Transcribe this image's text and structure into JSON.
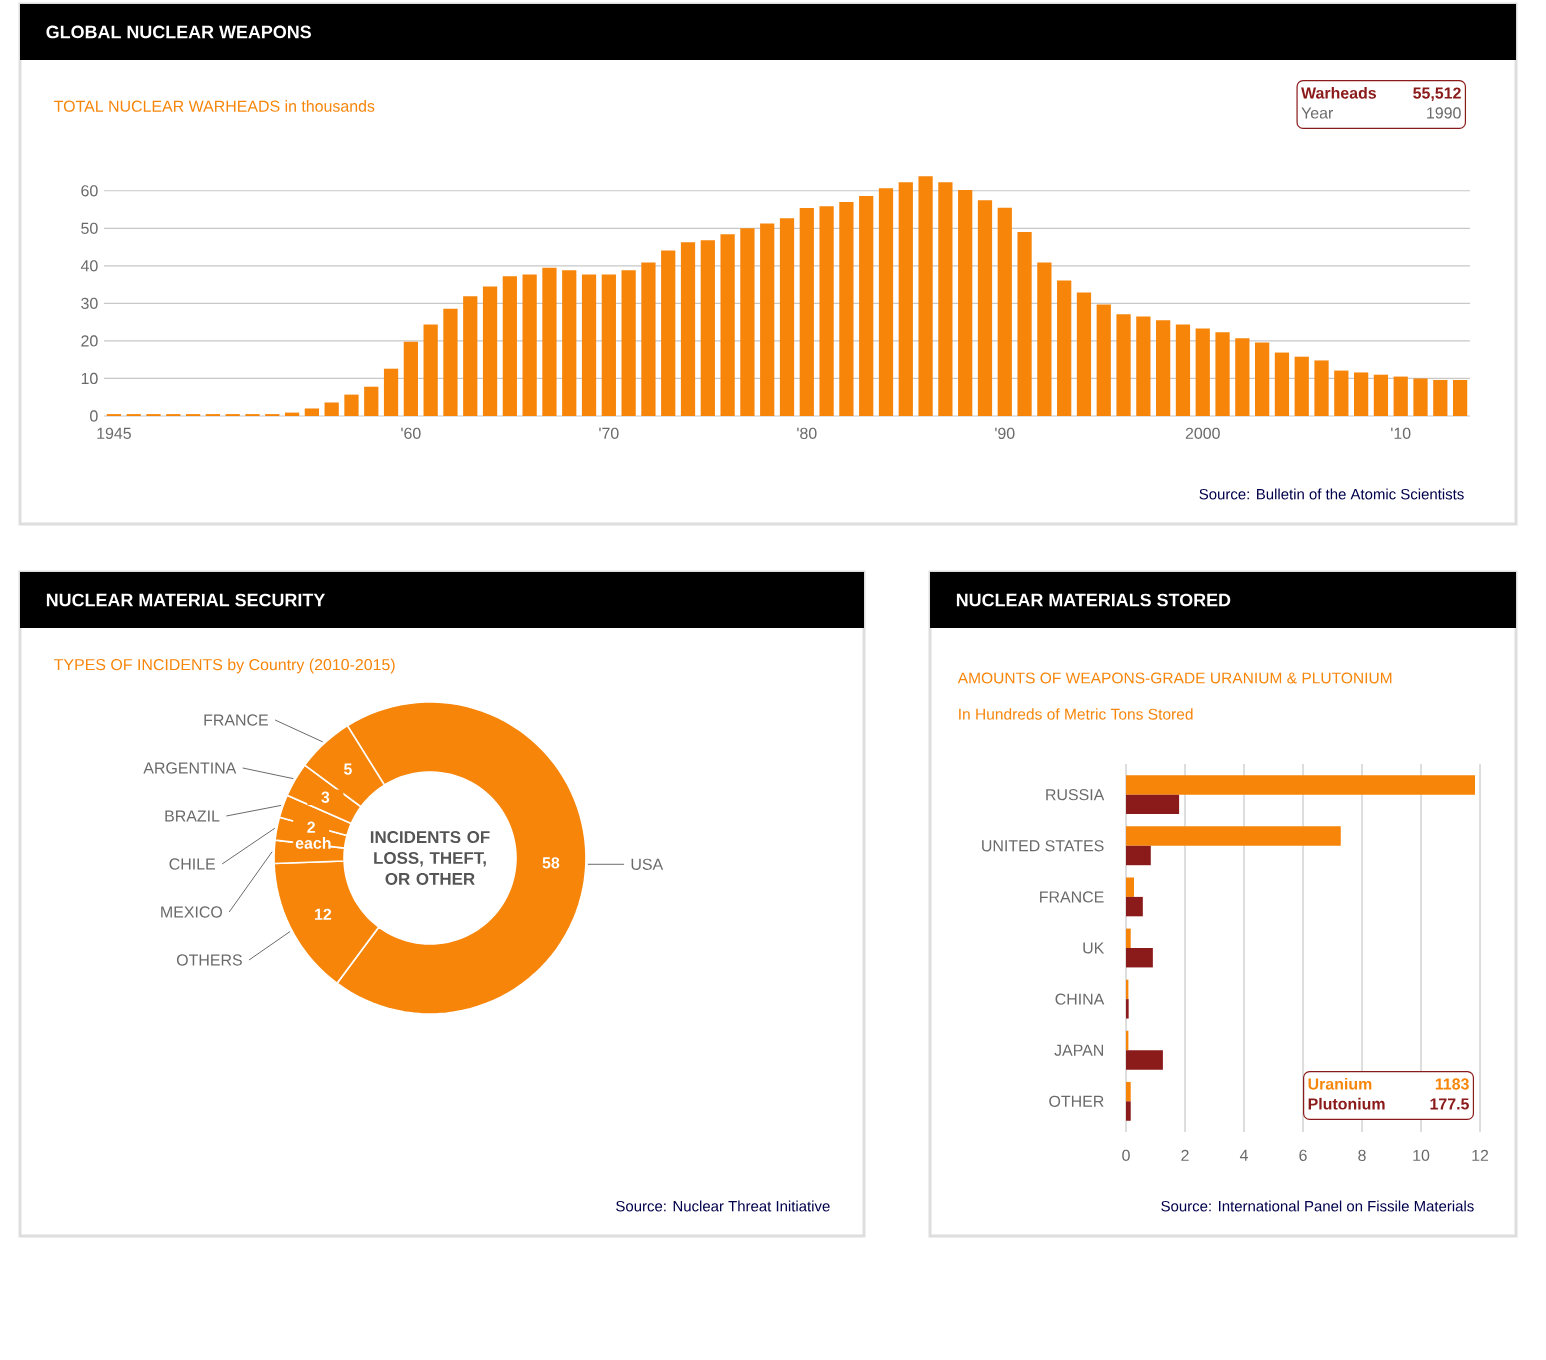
{
  "chart_data": [
    {
      "type": "bar",
      "title": "GLOBAL NUCLEAR WEAPONS",
      "subtitle": "TOTAL NUCLEAR WARHEADS in thousands",
      "x": [
        1945,
        1946,
        1947,
        1948,
        1949,
        1950,
        1951,
        1952,
        1953,
        1954,
        1955,
        1956,
        1957,
        1958,
        1959,
        1960,
        1961,
        1962,
        1963,
        1964,
        1965,
        1966,
        1967,
        1968,
        1969,
        1970,
        1971,
        1972,
        1973,
        1974,
        1975,
        1976,
        1977,
        1978,
        1979,
        1980,
        1981,
        1982,
        1983,
        1984,
        1985,
        1986,
        1987,
        1988,
        1989,
        1990,
        1991,
        1992,
        1993,
        1994,
        1995,
        1996,
        1997,
        1998,
        1999,
        2000,
        2001,
        2002,
        2003,
        2004,
        2005,
        2006,
        2007,
        2008,
        2009,
        2010,
        2011,
        2012,
        2013
      ],
      "values": [
        0.5,
        0.5,
        0.5,
        0.5,
        0.5,
        0.5,
        0.5,
        0.5,
        0.5,
        0.9,
        2.0,
        3.6,
        5.7,
        7.8,
        12.6,
        19.8,
        24.4,
        28.6,
        31.9,
        34.5,
        37.2,
        37.7,
        39.5,
        38.8,
        37.7,
        37.7,
        38.8,
        40.9,
        44.1,
        46.3,
        46.8,
        48.4,
        50.0,
        51.3,
        52.7,
        55.4,
        55.9,
        57.0,
        58.6,
        60.7,
        62.3,
        63.9,
        62.3,
        60.2,
        57.5,
        55.5,
        49.0,
        40.9,
        36.1,
        32.9,
        29.7,
        27.1,
        26.5,
        25.5,
        24.4,
        23.3,
        22.3,
        20.7,
        19.6,
        16.9,
        15.8,
        14.8,
        12.1,
        11.6,
        11.0,
        10.5,
        10.0,
        9.6,
        9.6
      ],
      "color": "#f7850a",
      "xlim": [
        1944.5,
        2013.5
      ],
      "ylim": [
        0,
        65
      ],
      "xticks": [
        {
          "value": 1945,
          "label": "1945"
        },
        {
          "value": 1960,
          "label": "'60"
        },
        {
          "value": 1970,
          "label": "'70"
        },
        {
          "value": 1980,
          "label": "'80"
        },
        {
          "value": 1990,
          "label": "'90"
        },
        {
          "value": 2000,
          "label": "2000"
        },
        {
          "value": 2010,
          "label": "'10"
        }
      ],
      "yticks": [
        0,
        10,
        20,
        30,
        40,
        50,
        60
      ],
      "grid": "y",
      "annotations": [
        "Warheads",
        "55,512",
        "Year",
        "1990",
        "Source: Bulletin of the Atomic Scientists"
      ]
    },
    {
      "type": "donut",
      "title": "NUCLEAR MATERIAL SECURITY",
      "subtitle": "TYPES OF INCIDENTS by Country (2010-2015)",
      "categories": [
        "USA",
        "OTHERS",
        "MEXICO",
        "CHILE",
        "BRAZIL",
        "ARGENTINA",
        "FRANCE"
      ],
      "values": [
        58,
        12,
        2,
        2,
        2,
        3,
        5
      ],
      "color": "#f7850a",
      "value_labels": [
        "58",
        "12",
        null,
        "2 each",
        null,
        "3",
        "5"
      ],
      "annotations": [
        "INCIDENTS OF LOSS, THEFT, OR OTHER",
        "Source: Nuclear Threat Initiative"
      ]
    },
    {
      "type": "bar",
      "orientation": "horizontal",
      "title": "NUCLEAR MATERIALS STORED",
      "subtitle": "AMOUNTS OF WEAPONS-GRADE URANIUM & PLUTONIUM",
      "categories": [
        "RUSSIA",
        "UNITED STATES",
        "FRANCE",
        "UK",
        "CHINA",
        "JAPAN",
        "OTHER"
      ],
      "series": [
        {
          "name": "Uranium",
          "color": "#f7850a",
          "values": [
            11.83,
            7.28,
            0.27,
            0.16,
            0.08,
            0.08,
            0.16
          ]
        },
        {
          "name": "Plutonium",
          "color": "#8b1a1a",
          "values": [
            1.8,
            0.84,
            0.57,
            0.91,
            0.09,
            1.25,
            0.16
          ]
        }
      ],
      "xlim": [
        0,
        12
      ],
      "xticks": [
        0,
        2,
        4,
        6,
        8,
        10,
        12
      ],
      "grid": "x",
      "legend": "bottom right",
      "annotations": [
        "In Hundreds of Metric Tons Stored",
        "1183",
        "177.5",
        "Source: International Panel on Fissile Materials"
      ]
    }
  ]
}
